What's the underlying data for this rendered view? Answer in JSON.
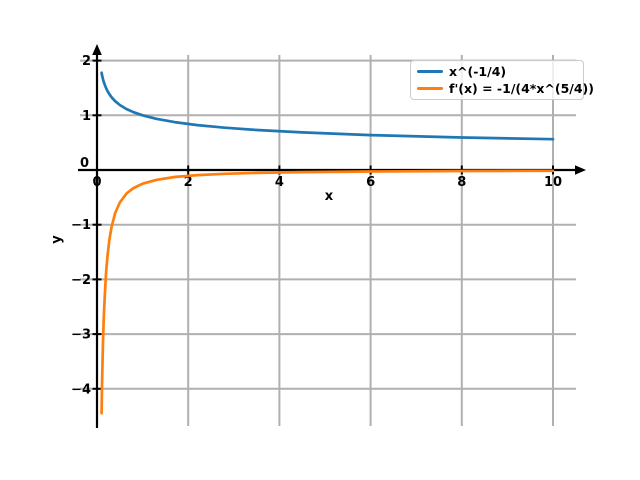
{
  "figure": {
    "background": "#ffffff"
  },
  "chart_data": {
    "type": "line",
    "title": "",
    "xlabel": "x",
    "ylabel": "y",
    "xlim": [
      -0.37,
      10.52
    ],
    "ylim": [
      -4.7,
      2.1
    ],
    "x_ticks": [
      0,
      2,
      4,
      6,
      8,
      10
    ],
    "y_ticks": [
      2,
      1,
      0,
      -1,
      -2,
      -3,
      -4
    ],
    "grid": true,
    "grid_color": "#b0b0b0",
    "axis_color": "#000000",
    "legend": {
      "position": "upper right",
      "frame": true
    },
    "series": [
      {
        "name": "x^(-1/4)",
        "color": "#1f77b4",
        "x": [
          0.1,
          0.11,
          0.12,
          0.13,
          0.15,
          0.17,
          0.2,
          0.23,
          0.27,
          0.32,
          0.4,
          0.5,
          0.65,
          0.8,
          1,
          1.3,
          1.7,
          2.2,
          2.8,
          3.5,
          4.5,
          6,
          8,
          10
        ],
        "y": [
          1.7783,
          1.7364,
          1.6988,
          1.6655,
          1.6069,
          1.5576,
          1.4953,
          1.444,
          1.3873,
          1.3296,
          1.2574,
          1.1892,
          1.1137,
          1.0574,
          1.0,
          0.9365,
          0.8757,
          0.8211,
          0.7731,
          0.7311,
          0.6866,
          0.6389,
          0.5946,
          0.5623
        ]
      },
      {
        "name": "f'(x) = -1/(4*x^(5/4))",
        "color": "#ff7f0e",
        "x": [
          0.1,
          0.11,
          0.12,
          0.13,
          0.15,
          0.17,
          0.2,
          0.23,
          0.27,
          0.32,
          0.4,
          0.5,
          0.65,
          0.8,
          1,
          1.3,
          1.7,
          2.2,
          2.8,
          3.5,
          4.5,
          6,
          8,
          10
        ],
        "y": [
          -4.4457,
          -3.9464,
          -3.5392,
          -3.2029,
          -2.6782,
          -2.2906,
          -1.8691,
          -1.5696,
          -1.2845,
          -1.0387,
          -0.7859,
          -0.5946,
          -0.4283,
          -0.3304,
          -0.25,
          -0.1801,
          -0.1288,
          -0.0933,
          -0.069,
          -0.0522,
          -0.0381,
          -0.0266,
          -0.0186,
          -0.0141
        ]
      }
    ]
  }
}
